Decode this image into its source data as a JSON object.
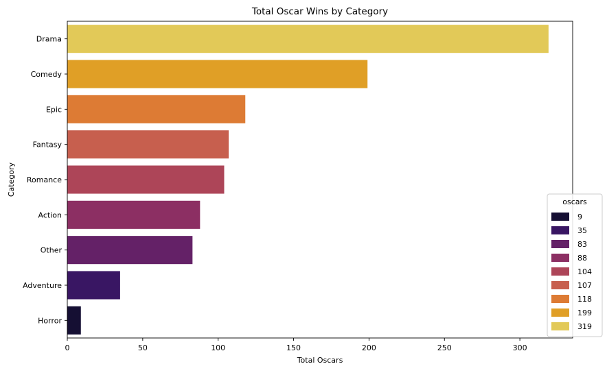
{
  "chart_data": {
    "type": "bar",
    "orientation": "horizontal",
    "title": "Total Oscar Wins by Category",
    "xlabel": "Total Oscars",
    "ylabel": "Category",
    "categories": [
      "Drama",
      "Comedy",
      "Epic",
      "Fantasy",
      "Romance",
      "Action",
      "Other",
      "Adventure",
      "Horror"
    ],
    "values": [
      319,
      199,
      118,
      107,
      104,
      88,
      83,
      35,
      9
    ],
    "colors": [
      "#e2c958",
      "#e09f26",
      "#dd7b34",
      "#c75f4e",
      "#ad4558",
      "#8c2f63",
      "#642167",
      "#391663",
      "#150f33"
    ],
    "xlim": [
      0,
      335
    ],
    "xticks": [
      0,
      50,
      100,
      150,
      200,
      250,
      300
    ],
    "grid": false,
    "legend": {
      "title": "oscars",
      "position": "lower-right",
      "entries": [
        {
          "label": "9",
          "color": "#150f33"
        },
        {
          "label": "35",
          "color": "#391663"
        },
        {
          "label": "83",
          "color": "#642167"
        },
        {
          "label": "88",
          "color": "#8c2f63"
        },
        {
          "label": "104",
          "color": "#ad4558"
        },
        {
          "label": "107",
          "color": "#c75f4e"
        },
        {
          "label": "118",
          "color": "#dd7b34"
        },
        {
          "label": "199",
          "color": "#e09f26"
        },
        {
          "label": "319",
          "color": "#e2c958"
        }
      ]
    }
  }
}
